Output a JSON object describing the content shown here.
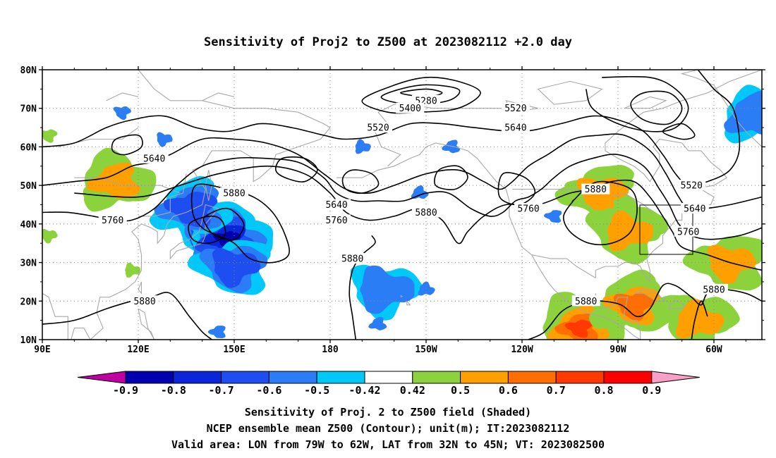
{
  "title": "Sensitivity of Proj2 to Z500 at 2023082112 +2.0 day",
  "axes": {
    "lat_labels": [
      "80N",
      "70N",
      "60N",
      "50N",
      "40N",
      "30N",
      "20N",
      "10N"
    ],
    "lon_labels": [
      "90E",
      "120E",
      "150E",
      "180",
      "150W",
      "120W",
      "90W",
      "60W"
    ],
    "lon_range": [
      "90E",
      "45W"
    ],
    "lat_range": [
      "10N",
      "80N"
    ],
    "grid": "dotted"
  },
  "contours": {
    "unit": "m",
    "labels": [
      {
        "text": "5280",
        "lon": -150,
        "lat": 72
      },
      {
        "text": "5400",
        "lon": -155,
        "lat": 70
      },
      {
        "text": "5520",
        "lon": -165,
        "lat": 65
      },
      {
        "text": "5520",
        "lon": -122,
        "lat": 70
      },
      {
        "text": "5640",
        "lon": -122,
        "lat": 65
      },
      {
        "text": "5640",
        "lon": 125,
        "lat": 57
      },
      {
        "text": "5880",
        "lon": 150,
        "lat": 48
      },
      {
        "text": "5760",
        "lon": 112,
        "lat": 41
      },
      {
        "text": "5640",
        "lon": -178,
        "lat": 45
      },
      {
        "text": "5760",
        "lon": -178,
        "lat": 41
      },
      {
        "text": "5880",
        "lon": -150,
        "lat": 43
      },
      {
        "text": "5760",
        "lon": -118,
        "lat": 44
      },
      {
        "text": "5880",
        "lon": -97,
        "lat": 49
      },
      {
        "text": "5520",
        "lon": -67,
        "lat": 50
      },
      {
        "text": "5640",
        "lon": -66,
        "lat": 44
      },
      {
        "text": "5760",
        "lon": -68,
        "lat": 38
      },
      {
        "text": "5880",
        "lon": -173,
        "lat": 31
      },
      {
        "text": "5880",
        "lon": 122,
        "lat": 20
      },
      {
        "text": "5880",
        "lon": -100,
        "lat": 20
      },
      {
        "text": "5880",
        "lon": -60,
        "lat": 23
      }
    ]
  },
  "valid_area": {
    "lon_min": "79W",
    "lon_max": "62W",
    "lat_min": "32N",
    "lat_max": "45N"
  },
  "shading": {
    "negative_blobs": [
      {
        "lon": 143,
        "lat": 39,
        "value": -0.7
      },
      {
        "lon": 148,
        "lat": 36,
        "value": -0.8
      },
      {
        "lon": 137,
        "lat": 44,
        "value": -0.6
      },
      {
        "lon": 150,
        "lat": 29,
        "value": -0.6
      },
      {
        "lon": -163,
        "lat": 23,
        "value": -0.5
      },
      {
        "lon": -47,
        "lat": 68,
        "value": -0.5
      }
    ],
    "positive_blobs": [
      {
        "lon": -95,
        "lat": 48,
        "value": 0.6
      },
      {
        "lon": -87,
        "lat": 38,
        "value": 0.6
      },
      {
        "lon": -102,
        "lat": 13,
        "value": 0.8
      },
      {
        "lon": -85,
        "lat": 19,
        "value": 0.7
      },
      {
        "lon": -55,
        "lat": 30,
        "value": 0.6
      },
      {
        "lon": -65,
        "lat": 15,
        "value": 0.6
      },
      {
        "lon": 113,
        "lat": 51,
        "value": 0.6
      }
    ]
  },
  "colorbar": {
    "labels": [
      "-0.9",
      "-0.8",
      "-0.7",
      "-0.6",
      "-0.5",
      "-0.42",
      "0.42",
      "0.5",
      "0.6",
      "0.7",
      "0.8",
      "0.9"
    ],
    "colors": [
      "#c000a0",
      "#0000b0",
      "#0a26d8",
      "#1e4ef0",
      "#2a7df5",
      "#00c8f8",
      "#ffffff",
      "#8cd23c",
      "#ffa000",
      "#ff6e00",
      "#ff3a00",
      "#ff0000",
      "#f8a0c8"
    ]
  },
  "footer": {
    "line1": "Sensitivity of Proj. 2 to Z500 field (Shaded)",
    "line2": "NCEP ensemble mean Z500 (Contour); unit(m); IT:2023082112",
    "line3": "Valid area: LON from 79W to 62W, LAT from 32N to 45N; VT: 2023082500"
  }
}
